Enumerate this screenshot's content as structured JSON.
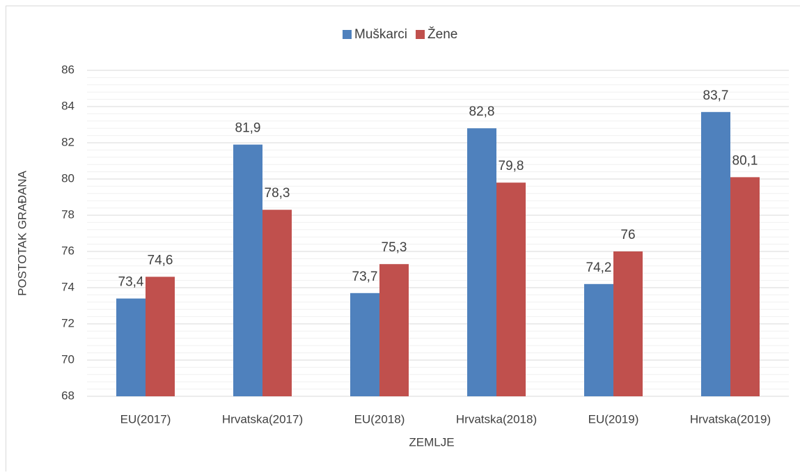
{
  "chart_data": {
    "type": "bar",
    "x_label": "ZEMLJE",
    "y_label": "POSTOTAK GRAĐANA",
    "categories": [
      "EU(2017)",
      "Hrvatska(2017)",
      "EU(2018)",
      "Hrvatska(2018)",
      "EU(2019)",
      "Hrvatska(2019)"
    ],
    "series": [
      {
        "name": "Muškarci",
        "color": "#4f81bd",
        "values": [
          73.4,
          81.9,
          73.7,
          82.8,
          74.2,
          83.7
        ],
        "value_labels": [
          "73,4",
          "81,9",
          "73,7",
          "82,8",
          "74,2",
          "83,7"
        ]
      },
      {
        "name": "Žene",
        "color": "#c0504d",
        "values": [
          74.6,
          78.3,
          75.3,
          79.8,
          76,
          80.1
        ],
        "value_labels": [
          "74,6",
          "78,3",
          "75,3",
          "79,8",
          "76",
          "80,1"
        ]
      }
    ],
    "ylim": [
      68,
      86
    ],
    "yticks": [
      68,
      70,
      72,
      74,
      76,
      78,
      80,
      82,
      84,
      86
    ],
    "grid": true,
    "legend": "top"
  }
}
